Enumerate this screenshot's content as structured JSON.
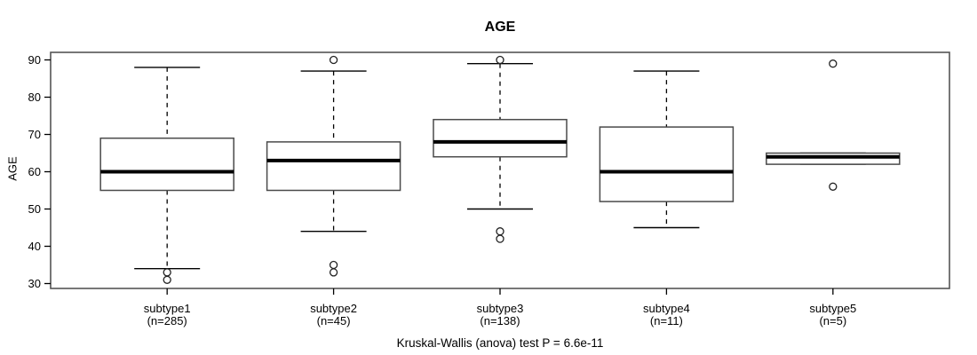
{
  "chart_data": {
    "type": "boxplot",
    "title": "AGE",
    "xlabel": "",
    "ylabel": "AGE",
    "yticks": [
      30,
      40,
      50,
      60,
      70,
      80,
      90
    ],
    "ylim": [
      28.5,
      91.5
    ],
    "grid": false,
    "annotation": "Kruskal-Wallis (anova) test P = 6.6e-11",
    "groups": [
      {
        "label": "subtype1",
        "sublabel": "(n=285)",
        "n": 285,
        "whisker_low": 34,
        "q1": 55,
        "median": 60,
        "q3": 69,
        "whisker_high": 88,
        "outliers": [
          33,
          31
        ]
      },
      {
        "label": "subtype2",
        "sublabel": "(n=45)",
        "n": 45,
        "whisker_low": 44,
        "q1": 55,
        "median": 63,
        "q3": 68,
        "whisker_high": 87,
        "outliers": [
          90,
          35,
          33
        ]
      },
      {
        "label": "subtype3",
        "sublabel": "(n=138)",
        "n": 138,
        "whisker_low": 50,
        "q1": 64,
        "median": 68,
        "q3": 74,
        "whisker_high": 89,
        "outliers": [
          90,
          44,
          42
        ]
      },
      {
        "label": "subtype4",
        "sublabel": "(n=11)",
        "n": 11,
        "whisker_low": 45,
        "q1": 52,
        "median": 60,
        "q3": 72,
        "whisker_high": 87,
        "outliers": []
      },
      {
        "label": "subtype5",
        "sublabel": "(n=5)",
        "n": 5,
        "whisker_low": 62,
        "q1": 62,
        "median": 64,
        "q3": 65,
        "whisker_high": 65,
        "outliers": [
          89,
          56
        ]
      }
    ],
    "colors": {
      "background": "#ffffff",
      "box_fill": "#ffffff",
      "box_border": "#4a4a4a",
      "median": "#000000",
      "whisker": "#000000",
      "frame": "#555555",
      "text": "#000000"
    }
  }
}
